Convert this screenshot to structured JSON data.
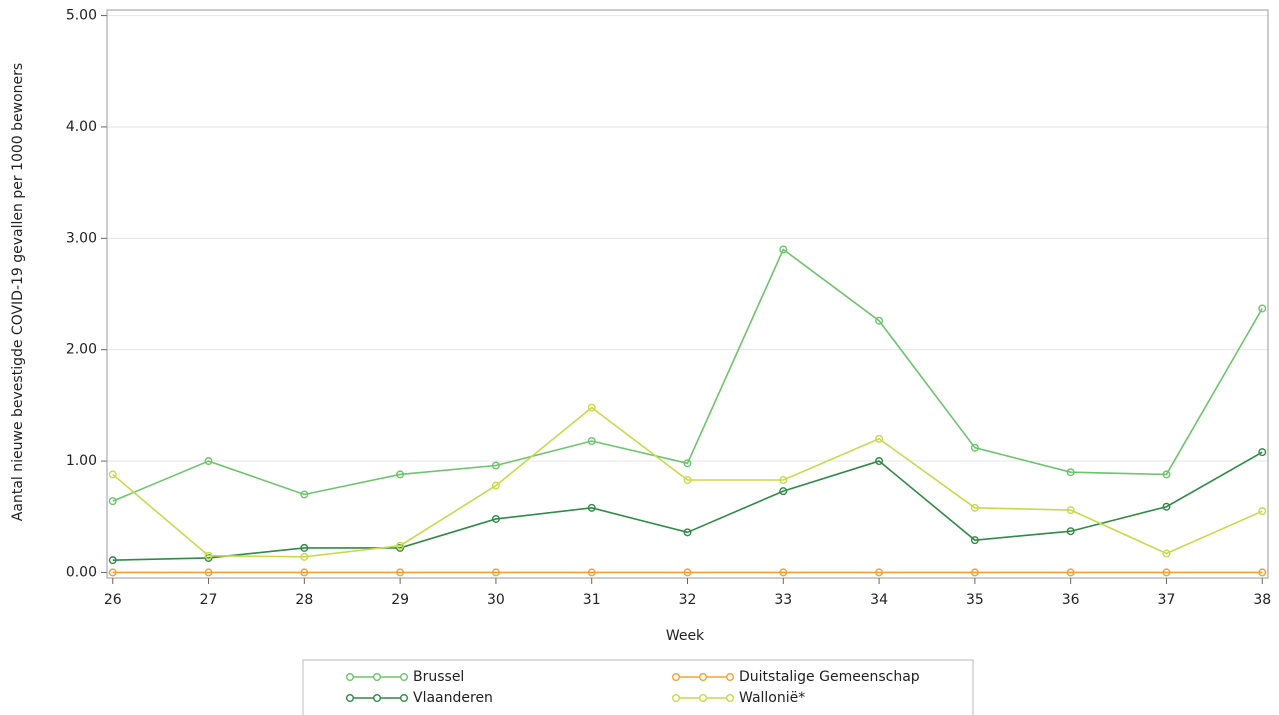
{
  "chart_data": {
    "type": "line",
    "y_label": "Aantal nieuwe bevestigde COVID-19 gevallen per 1000 bewoners",
    "x_label": "Week",
    "x": [
      26,
      27,
      28,
      29,
      30,
      31,
      32,
      33,
      34,
      35,
      36,
      37,
      38
    ],
    "series": [
      {
        "name": "Brussel",
        "color": "#6cc46c",
        "values": [
          0.64,
          1.0,
          0.7,
          0.88,
          0.96,
          1.18,
          0.98,
          2.9,
          2.26,
          1.12,
          0.9,
          0.88,
          2.37
        ]
      },
      {
        "name": "Duitstalige Gemeenschap",
        "color": "#f5a033",
        "values": [
          0,
          0,
          0,
          0,
          0,
          0,
          0,
          0,
          0,
          0,
          0,
          0,
          0
        ]
      },
      {
        "name": "Vlaanderen",
        "color": "#2f8a45",
        "values": [
          0.11,
          0.13,
          0.22,
          0.22,
          0.48,
          0.58,
          0.36,
          0.73,
          1.0,
          0.29,
          0.37,
          0.59,
          1.08
        ]
      },
      {
        "name": "Wallonië*",
        "color": "#c9d94a",
        "values": [
          0.88,
          0.15,
          0.14,
          0.24,
          0.78,
          1.48,
          0.83,
          0.83,
          1.2,
          0.58,
          0.56,
          0.17,
          0.55
        ]
      }
    ],
    "xlim": [
      25.94,
      38.06
    ],
    "xticks": [
      26,
      27,
      28,
      29,
      30,
      31,
      32,
      33,
      34,
      35,
      36,
      37,
      38
    ],
    "ylim": [
      -0.05,
      5.05
    ],
    "yticks": [
      {
        "value": 0,
        "label": "0.00"
      },
      {
        "value": 1,
        "label": "1.00"
      },
      {
        "value": 2,
        "label": "2.00"
      },
      {
        "value": 3,
        "label": "3.00"
      },
      {
        "value": 4,
        "label": "4.00"
      },
      {
        "value": 5,
        "label": "5.00"
      }
    ],
    "grid": true
  }
}
